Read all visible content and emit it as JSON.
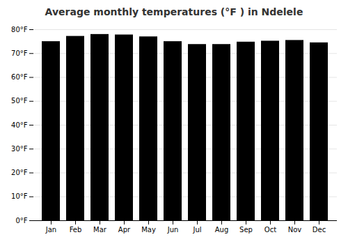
{
  "chart_data": {
    "type": "bar",
    "title": "Average monthly temperatures (°F ) in Ndelele",
    "categories": [
      "Jan",
      "Feb",
      "Mar",
      "Apr",
      "May",
      "Jun",
      "Jul",
      "Aug",
      "Sep",
      "Oct",
      "Nov",
      "Dec"
    ],
    "values": [
      75.0,
      77.2,
      78.0,
      77.8,
      77.0,
      75.0,
      73.8,
      73.8,
      74.8,
      75.2,
      75.5,
      74.5
    ],
    "ylim": [
      0,
      80
    ],
    "yticks": [
      {
        "value": 0,
        "label": "0°F"
      },
      {
        "value": 10,
        "label": "10°F"
      },
      {
        "value": 20,
        "label": "20°F"
      },
      {
        "value": 30,
        "label": "30°F"
      },
      {
        "value": 40,
        "label": "40°F"
      },
      {
        "value": 50,
        "label": "50°F"
      },
      {
        "value": 60,
        "label": "60°F"
      },
      {
        "value": 70,
        "label": "70°F"
      },
      {
        "value": 80,
        "label": "80°F"
      }
    ],
    "grid": true
  }
}
